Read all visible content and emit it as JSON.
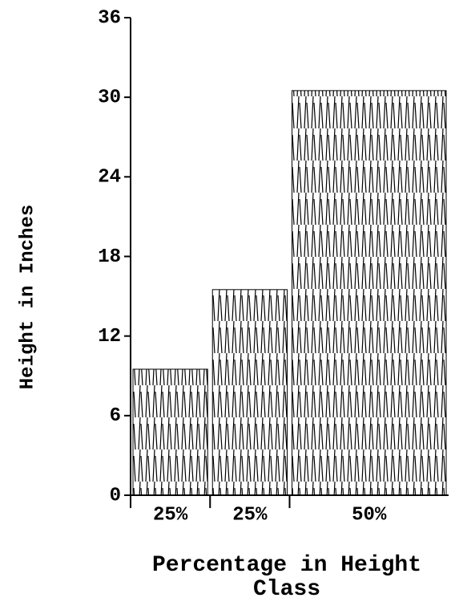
{
  "chart_data": {
    "type": "bar",
    "ylabel": "Height in Inches",
    "xlabel": "Percentage in Height Class",
    "categories": [
      "25%",
      "25%",
      "50%"
    ],
    "widths": [
      25,
      25,
      50
    ],
    "values": [
      9.5,
      15.5,
      30.5
    ],
    "ylim": [
      0,
      36
    ],
    "yticks": [
      0,
      6,
      12,
      18,
      24,
      30,
      36
    ],
    "color": "#000000"
  }
}
